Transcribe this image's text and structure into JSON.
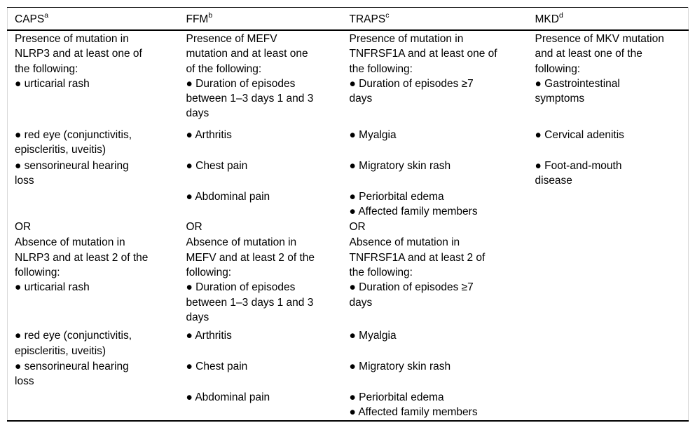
{
  "table": {
    "columns": [
      {
        "label": "CAPS",
        "sup": "a"
      },
      {
        "label": "FFM",
        "sup": "b"
      },
      {
        "label": "TRAPS",
        "sup": "c"
      },
      {
        "label": "MKD",
        "sup": "d"
      }
    ],
    "bullet_glyph": "●",
    "rows": [
      {
        "cells": [
          [
            "Presence of mutation in",
            "NLRP3 and at least one of",
            "the following:",
            "● urticarial rash"
          ],
          [
            "Presence of MEFV",
            "mutation and at least one",
            "of the following:",
            "● Duration of episodes",
            "between 1–3 days 1 and 3",
            "days"
          ],
          [
            "Presence of mutation in",
            "TNFRSF1A and at least one of",
            "the following:",
            "● Duration of episodes ≥7",
            "days"
          ],
          [
            "Presence of MKV mutation",
            "and at least one of the",
            "following:",
            "● Gastrointestinal",
            "symptoms"
          ]
        ]
      },
      {
        "cells": [
          [
            "● red eye (conjunctivitis,",
            "episcleritis, uveitis)"
          ],
          [
            "● Arthritis"
          ],
          [
            "● Myalgia"
          ],
          [
            "● Cervical adenitis"
          ]
        ]
      },
      {
        "cells": [
          [
            "● sensorineural hearing",
            "loss"
          ],
          [
            "● Chest pain"
          ],
          [
            "● Migratory skin rash"
          ],
          [
            "● Foot-and-mouth",
            "disease"
          ]
        ]
      },
      {
        "cells": [
          [],
          [
            "● Abdominal pain"
          ],
          [
            "● Periorbital edema",
            "● Affected family members"
          ],
          []
        ]
      },
      {
        "cells": [
          [
            "OR"
          ],
          [
            "OR"
          ],
          [
            "OR"
          ],
          []
        ]
      },
      {
        "cells": [
          [
            "Absence of mutation in",
            "NLRP3 and at least 2 of the",
            "following:",
            "● urticarial rash"
          ],
          [
            "Absence of mutation in",
            "MEFV and at least 2 of the",
            "following:",
            "● Duration of episodes",
            "between 1–3 days 1 and 3",
            "days"
          ],
          [
            "Absence of mutation in",
            "TNFRSF1A and at least 2 of",
            "the following:",
            "● Duration of episodes ≥7",
            "days"
          ],
          []
        ]
      },
      {
        "cells": [
          [
            "● red eye (conjunctivitis,",
            "episcleritis, uveitis)"
          ],
          [
            "● Arthritis"
          ],
          [
            "● Myalgia"
          ],
          []
        ]
      },
      {
        "cells": [
          [
            "● sensorineural hearing",
            "loss"
          ],
          [
            "● Chest pain"
          ],
          [
            "● Migratory skin rash"
          ],
          []
        ]
      },
      {
        "cells": [
          [],
          [
            "● Abdominal pain"
          ],
          [
            "● Periorbital edema",
            "● Affected family members"
          ],
          []
        ]
      }
    ]
  },
  "colors": {
    "text": "#000000",
    "rule": "#000000",
    "side_border": "#d8d8d8",
    "background": "#ffffff"
  }
}
